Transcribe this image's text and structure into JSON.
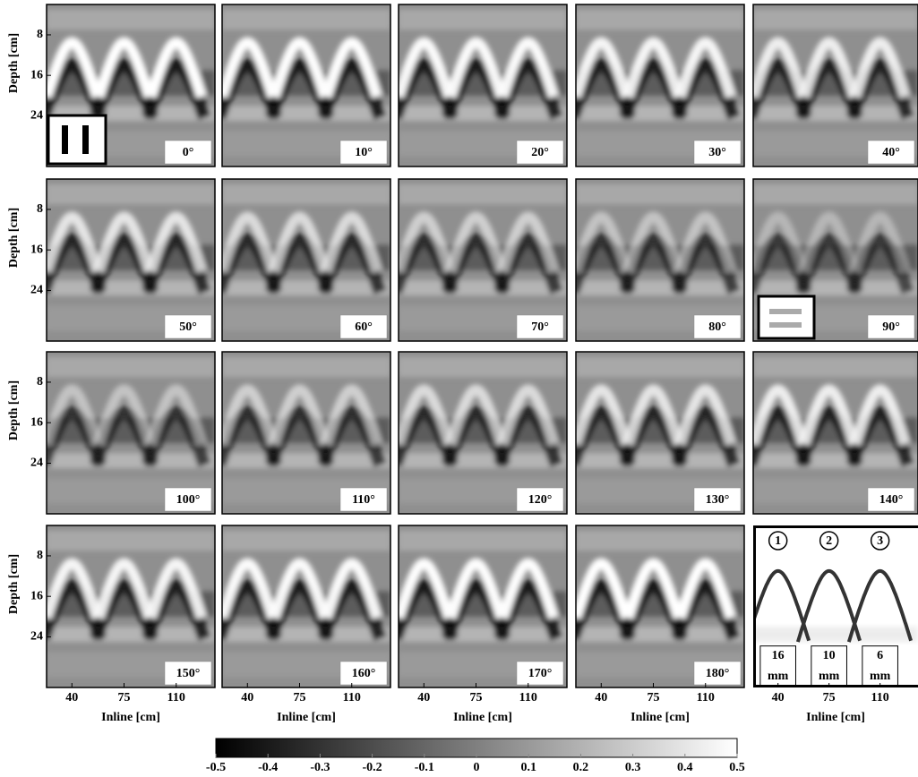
{
  "chart_data": {
    "type": "radargram-grid",
    "panel_labels": [
      "0°",
      "10°",
      "20°",
      "30°",
      "40°",
      "50°",
      "60°",
      "70°",
      "80°",
      "90°",
      "100°",
      "110°",
      "120°",
      "130°",
      "140°",
      "150°",
      "160°",
      "170°",
      "180°"
    ],
    "y_label": "Depth [cm]",
    "x_label": "Inline [cm]",
    "xlim": [
      23,
      136
    ],
    "xticks": [
      40,
      75,
      110
    ],
    "ylim": [
      2,
      34
    ],
    "yticks": [
      8,
      16,
      24
    ],
    "colorbar": {
      "lim": [
        -0.5,
        0.5
      ],
      "ticks": [
        -0.5,
        -0.4,
        -0.3,
        -0.2,
        -0.1,
        0,
        0.1,
        0.2,
        0.3,
        0.4,
        0.5
      ]
    },
    "schematic": {
      "markers": [
        "1",
        "2",
        "3"
      ],
      "sizes": [
        [
          "16",
          "mm"
        ],
        [
          "10",
          "mm"
        ],
        [
          "6",
          "mm"
        ]
      ]
    }
  }
}
